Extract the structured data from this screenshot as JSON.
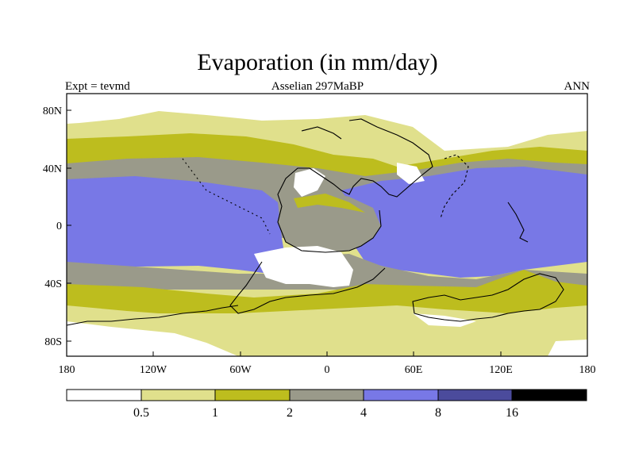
{
  "title": "Evaporation (in mm/day)",
  "subtitle_left": "Expt = tevmd",
  "subtitle_center": "Asselian 297MaBP",
  "subtitle_right": "ANN",
  "x_ticks": [
    "180",
    "120W",
    "60W",
    "0",
    "60E",
    "120E",
    "180"
  ],
  "y_ticks": [
    "80N",
    "40N",
    "0",
    "40S",
    "80S"
  ],
  "colorbar": {
    "labels": [
      "0.5",
      "1",
      "2",
      "4",
      "8",
      "16"
    ],
    "colors": [
      "#ffffff",
      "#e0e08c",
      "#bdbd1e",
      "#9a9a8a",
      "#7878e6",
      "#4b4b9c",
      "#000000"
    ]
  },
  "colors": {
    "band_0": "#ffffff",
    "band_1": "#e0e08c",
    "band_2": "#bdbd1e",
    "band_3": "#9a9a8a",
    "band_4": "#7878e6"
  }
}
